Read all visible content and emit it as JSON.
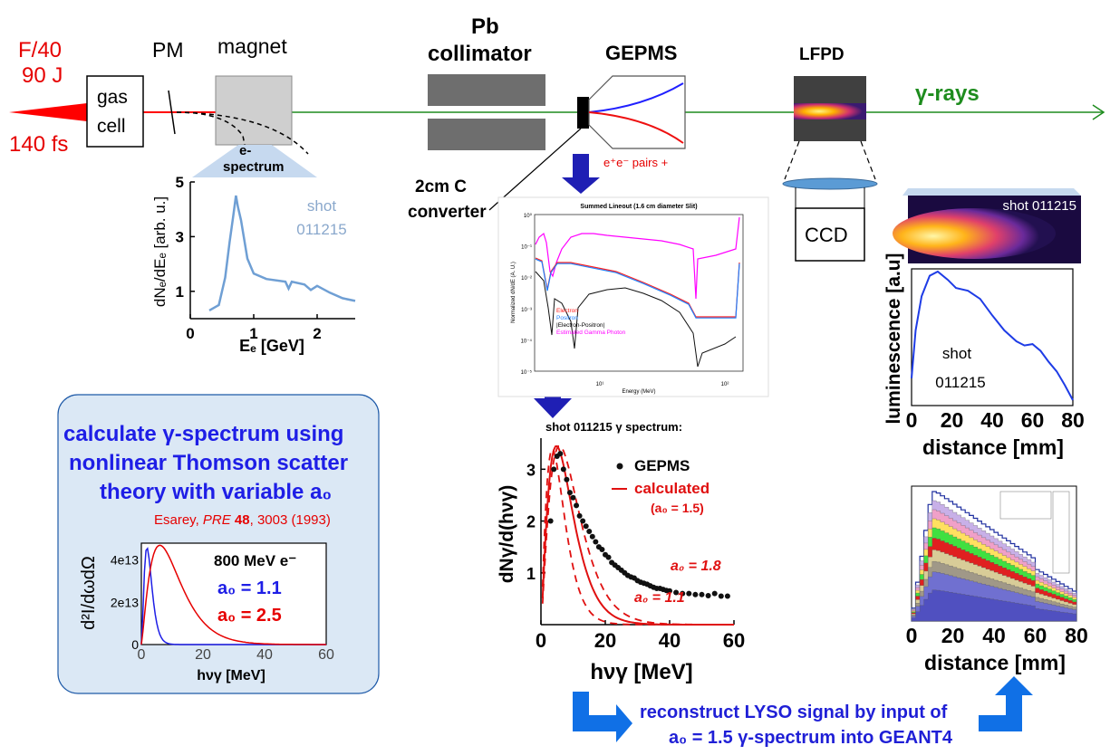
{
  "laser": {
    "focus": "F/40",
    "energy": "90 J",
    "duration": "140 fs"
  },
  "labels": {
    "gas": "gas",
    "cell": "cell",
    "pm": "PM",
    "magnet": "magnet",
    "pb": "Pb",
    "collimator": "collimator",
    "gepms": "GEPMS",
    "lfpd": "LFPD",
    "gamma_rays": "γ-rays",
    "ccd": "CCD",
    "converter_1": "2cm C",
    "converter_2": "converter",
    "pairs": "e⁺e⁻ pairs +"
  },
  "espectrum": {
    "title_1": "e-",
    "title_2": "spectrum",
    "shot_1": "shot",
    "shot_2": "011215",
    "ylabel": "dNₑ/dEₑ [arb. u.]",
    "xlabel": "Eₑ [GeV]",
    "xticks": [
      "0",
      "1",
      "2"
    ],
    "yticks": [
      "1",
      "3",
      "5"
    ]
  },
  "gepms_plot": {
    "title": "Summed Lineout (1.6 cm diameter Slit)",
    "ylabel": "Normalized dN/dE (A. U.)",
    "xlabel": "Energy (MeV)",
    "yticks": [
      "10⁰",
      "10⁻¹",
      "10⁻²",
      "10⁻³",
      "10⁻⁴",
      "10⁻⁵"
    ],
    "xticks": [
      "10¹",
      "10²"
    ],
    "legend": [
      "Electron",
      "Positron",
      "|Electron-Positron|",
      "Estimated Gamma Photon"
    ],
    "legend_colors": [
      "#ff2020",
      "#2080ff",
      "#000000",
      "#ff00ff"
    ]
  },
  "gamma_spectrum": {
    "title": "shot 011215 γ spectrum:",
    "legend_gepms": "GEPMS",
    "legend_calc": "calculated",
    "legend_a0": "(a₀ = 1.5)",
    "label_18": "a₀ = 1.8",
    "label_11": "a₀ = 1.1",
    "ylabel": "dNγ/d(hνγ)",
    "xlabel": "hνγ [MeV]",
    "xticks": [
      "0",
      "20",
      "40",
      "60"
    ],
    "yticks": [
      "1",
      "2",
      "3"
    ]
  },
  "luminescence": {
    "image_label": "shot 011215",
    "ylabel": "luminescence [a.u]",
    "shot_1": "shot",
    "shot_2": "011215",
    "xticks": [
      "0",
      "20",
      "40",
      "60",
      "80"
    ],
    "xlabel": "distance [mm]"
  },
  "geant": {
    "xticks": [
      "0",
      "20",
      "40",
      "60",
      "80"
    ],
    "xlabel": "distance [mm]"
  },
  "thomson": {
    "line1": "calculate γ-spectrum using",
    "line2": "nonlinear Thomson scatter",
    "line3": "theory with variable a₀",
    "ref_author": "Esarey, ",
    "ref_journal": "PRE",
    "ref_vol": " 48",
    "ref_rest": ", 3003 (1993)",
    "plot_e": "800 MeV e⁻",
    "plot_a1": "a₀ = 1.1",
    "plot_a2": "a₀ = 2.5",
    "ylabel": "d²I/dωdΩ",
    "xlabel": "hνγ [MeV]",
    "yticks": [
      "0",
      "2e13",
      "4e13"
    ],
    "xticks": [
      "0",
      "20",
      "40",
      "60"
    ]
  },
  "bottom": {
    "line1": "reconstruct LYSO signal by input of",
    "line2": "a₀ = 1.5 γ-spectrum into GEANT4"
  }
}
